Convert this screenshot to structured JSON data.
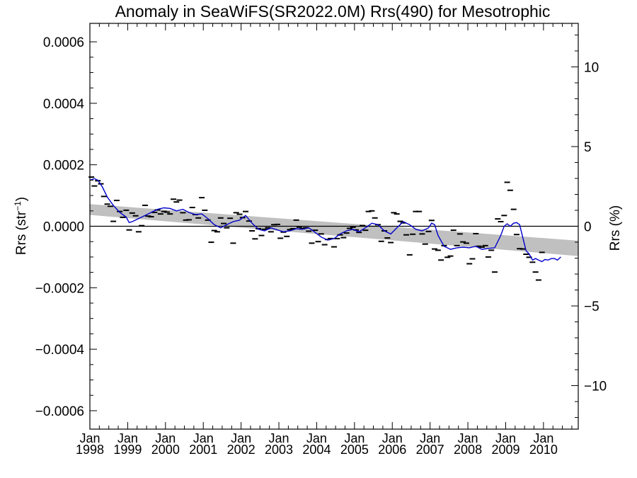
{
  "chart_data": {
    "type": "line",
    "title": "Anomaly in SeaWiFS(SR2022.0M) Rrs(490) for Mesotrophic",
    "ylabel_left": {
      "base": "Rrs (str",
      "sup": "−1",
      "tail": ")"
    },
    "ylabel_right": "Rrs (%)",
    "xlabel": "",
    "xlim": [
      1998.0,
      2010.92
    ],
    "ylim": [
      -0.00066,
      0.00066
    ],
    "ylim_right": [
      -12.73,
      12.73
    ],
    "left_ticks": [
      {
        "value": 0.0006,
        "label": "0.0006"
      },
      {
        "value": 0.0004,
        "label": "0.0004"
      },
      {
        "value": 0.0002,
        "label": "0.0002"
      },
      {
        "value": 0.0,
        "label": "0.0000"
      },
      {
        "value": -0.0002,
        "label": "−0.0002"
      },
      {
        "value": -0.0004,
        "label": "−0.0004"
      },
      {
        "value": -0.0006,
        "label": "−0.0006"
      }
    ],
    "right_ticks": [
      {
        "value": 10,
        "label": "10"
      },
      {
        "value": 5,
        "label": "5"
      },
      {
        "value": 0,
        "label": "0"
      },
      {
        "value": -5,
        "label": "−5"
      },
      {
        "value": -10,
        "label": "−10"
      }
    ],
    "x_ticks": [
      {
        "value": 1998,
        "month": "Jan",
        "year": "1998"
      },
      {
        "value": 1999,
        "month": "Jan",
        "year": "1999"
      },
      {
        "value": 2000,
        "month": "Jan",
        "year": "2000"
      },
      {
        "value": 2001,
        "month": "Jan",
        "year": "2001"
      },
      {
        "value": 2002,
        "month": "Jan",
        "year": "2002"
      },
      {
        "value": 2003,
        "month": "Jan",
        "year": "2003"
      },
      {
        "value": 2004,
        "month": "Jan",
        "year": "2004"
      },
      {
        "value": 2005,
        "month": "Jan",
        "year": "2005"
      },
      {
        "value": 2006,
        "month": "Jan",
        "year": "2006"
      },
      {
        "value": 2007,
        "month": "Jan",
        "year": "2007"
      },
      {
        "value": 2008,
        "month": "Jan",
        "year": "2008"
      },
      {
        "value": 2009,
        "month": "Jan",
        "year": "2009"
      },
      {
        "value": 2010,
        "month": "Jan",
        "year": "2010"
      }
    ],
    "zero_line": 0,
    "trend_band": {
      "x": [
        1998.0,
        2010.92
      ],
      "upper": [
        7.2e-05,
        -4.7e-05
      ],
      "lower": [
        3.7e-05,
        -9.7e-05
      ],
      "color": "#c0c0c0"
    },
    "series": [
      {
        "style": "markers-dash",
        "color": "#000000",
        "points": [
          [
            1998.04,
            0.00016
          ],
          [
            1998.12,
            0.000131
          ],
          [
            1998.21,
            0.000148
          ],
          [
            1998.29,
            0.000138
          ],
          [
            1998.37,
            9.7e-05
          ],
          [
            1998.46,
            7.2e-05
          ],
          [
            1998.54,
            6.5e-05
          ],
          [
            1998.62,
            1.6e-05
          ],
          [
            1998.71,
            8.4e-05
          ],
          [
            1998.79,
            4.8e-05
          ],
          [
            1998.87,
            2.9e-05
          ],
          [
            1998.96,
            5.2e-05
          ],
          [
            1999.04,
            -1.2e-05
          ],
          [
            1999.12,
            4.3e-05
          ],
          [
            1999.21,
            3.4e-05
          ],
          [
            1999.29,
            -1.8e-05
          ],
          [
            1999.37,
            2e-06
          ],
          [
            1999.46,
            6.8e-05
          ],
          [
            1999.54,
            3.3e-05
          ],
          [
            1999.62,
            3.1e-05
          ],
          [
            1999.71,
            4.5e-05
          ],
          [
            1999.79,
            5.3e-05
          ],
          [
            1999.87,
            4e-05
          ],
          [
            1999.96,
            4.8e-05
          ],
          [
            2000.04,
            4.6e-05
          ],
          [
            2000.12,
            4e-05
          ],
          [
            2000.21,
            8.8e-05
          ],
          [
            2000.29,
            7.9e-05
          ],
          [
            2000.37,
            8.5e-05
          ],
          [
            2000.46,
            4.4e-05
          ],
          [
            2000.54,
            2e-05
          ],
          [
            2000.62,
            2.1e-05
          ],
          [
            2000.71,
            6.1e-05
          ],
          [
            2000.79,
            3.8e-05
          ],
          [
            2000.87,
            2.7e-05
          ],
          [
            2000.96,
            9.3e-05
          ],
          [
            2001.04,
            5.2e-05
          ],
          [
            2001.12,
            2e-05
          ],
          [
            2001.21,
            -5.2e-05
          ],
          [
            2001.29,
            -1.4e-05
          ],
          [
            2001.37,
            -1.8e-05
          ],
          [
            2001.46,
            2.7e-05
          ],
          [
            2001.54,
            9e-06
          ],
          [
            2001.62,
            -5e-06
          ],
          [
            2001.71,
            2.6e-05
          ],
          [
            2001.79,
            -5.5e-05
          ],
          [
            2001.87,
            4.4e-05
          ],
          [
            2001.96,
            3.9e-05
          ],
          [
            2002.04,
            2.8e-05
          ],
          [
            2002.12,
            4.8e-05
          ],
          [
            2002.21,
            1.7e-05
          ],
          [
            2002.29,
            -1.5e-05
          ],
          [
            2002.37,
            -4.1e-05
          ],
          [
            2002.46,
            -8e-06
          ],
          [
            2002.54,
            -3e-05
          ],
          [
            2002.62,
            -1e-05
          ],
          [
            2002.71,
            -5e-06
          ],
          [
            2002.79,
            -1.8e-05
          ],
          [
            2002.87,
            5e-06
          ],
          [
            2002.96,
            6e-06
          ],
          [
            2003.04,
            -3.9e-05
          ],
          [
            2003.12,
            -1.9e-05
          ],
          [
            2003.21,
            -3.3e-05
          ],
          [
            2003.29,
            -1.1e-05
          ],
          [
            2003.37,
            -8e-06
          ],
          [
            2003.46,
            2e-05
          ],
          [
            2003.54,
            -3e-06
          ],
          [
            2003.62,
            -8e-06
          ],
          [
            2003.71,
            -5e-06
          ],
          [
            2003.79,
            -1.6e-05
          ],
          [
            2003.87,
            -5.5e-05
          ],
          [
            2003.96,
            -1.3e-05
          ],
          [
            2004.04,
            -5e-05
          ],
          [
            2004.12,
            -2.5e-05
          ],
          [
            2004.21,
            -6e-05
          ],
          [
            2004.29,
            -4.3e-05
          ],
          [
            2004.37,
            -4e-05
          ],
          [
            2004.46,
            -6.7e-05
          ],
          [
            2004.54,
            -4e-05
          ],
          [
            2004.62,
            -2.8e-05
          ],
          [
            2004.71,
            -3.7e-05
          ],
          [
            2004.79,
            -2.2e-05
          ],
          [
            2004.87,
            -7e-06
          ],
          [
            2004.96,
            -3e-06
          ],
          [
            2005.04,
            -1.2e-05
          ],
          [
            2005.12,
            -2e-05
          ],
          [
            2005.21,
            2e-06
          ],
          [
            2005.29,
            -1.3e-05
          ],
          [
            2005.37,
            4.8e-05
          ],
          [
            2005.46,
            5e-05
          ],
          [
            2005.54,
            2.7e-05
          ],
          [
            2005.62,
            5e-06
          ],
          [
            2005.71,
            -4.9e-05
          ],
          [
            2005.79,
            -1.5e-05
          ],
          [
            2005.87,
            -3.8e-05
          ],
          [
            2005.96,
            -5.3e-05
          ],
          [
            2006.04,
            4.4e-05
          ],
          [
            2006.12,
            4e-05
          ],
          [
            2006.21,
            1.6e-05
          ],
          [
            2006.29,
            1.1e-05
          ],
          [
            2006.37,
            -2.8e-05
          ],
          [
            2006.46,
            -9.3e-05
          ],
          [
            2006.54,
            -2.6e-05
          ],
          [
            2006.62,
            4.8e-05
          ],
          [
            2006.71,
            4.8e-05
          ],
          [
            2006.79,
            -2.5e-05
          ],
          [
            2006.87,
            -5.8e-05
          ],
          [
            2006.96,
            -1.7e-05
          ],
          [
            2007.04,
            1.9e-05
          ],
          [
            2007.12,
            -7.4e-05
          ],
          [
            2007.21,
            -7.8e-05
          ],
          [
            2007.29,
            -0.00011
          ],
          [
            2007.37,
            -6.3e-05
          ],
          [
            2007.46,
            -0.000101
          ],
          [
            2007.54,
            -9.7e-05
          ],
          [
            2007.62,
            -1.3e-05
          ],
          [
            2007.71,
            -6.3e-05
          ],
          [
            2007.79,
            -2.5e-05
          ],
          [
            2007.87,
            -5.1e-05
          ],
          [
            2007.96,
            -5.5e-05
          ],
          [
            2008.04,
            -0.000122
          ],
          [
            2008.12,
            -0.000106
          ],
          [
            2008.21,
            -2.4e-05
          ],
          [
            2008.29,
            -6.5e-05
          ],
          [
            2008.37,
            -6.8e-05
          ],
          [
            2008.46,
            -6.3e-05
          ],
          [
            2008.54,
            -0.0001
          ],
          [
            2008.62,
            -7.8e-05
          ],
          [
            2008.71,
            -0.000149
          ],
          [
            2008.79,
            2.4e-05
          ],
          [
            2008.87,
            1.5e-05
          ],
          [
            2008.96,
            3.5e-05
          ],
          [
            2009.04,
            0.000143
          ],
          [
            2009.12,
            0.000117
          ],
          [
            2009.21,
            5.5e-05
          ],
          [
            2009.29,
            -2.7e-05
          ],
          [
            2009.37,
            -7.3e-05
          ],
          [
            2009.46,
            -7.4e-05
          ],
          [
            2009.54,
            -9.1e-05
          ],
          [
            2009.62,
            -0.000101
          ],
          [
            2009.71,
            -0.000117
          ],
          [
            2009.79,
            -0.000149
          ],
          [
            2009.87,
            -0.000175
          ],
          [
            2009.96,
            -8.5e-05
          ]
        ]
      },
      {
        "style": "line",
        "color": "#0000cc",
        "points": [
          [
            1998.0,
            0.00015
          ],
          [
            1998.12,
            0.000155
          ],
          [
            1998.21,
            0.00015
          ],
          [
            1998.33,
            0.000128
          ],
          [
            1998.46,
            9.5e-05
          ],
          [
            1998.62,
            6.8e-05
          ],
          [
            1998.79,
            4.5e-05
          ],
          [
            1998.96,
            3e-05
          ],
          [
            1999.04,
            1.2e-05
          ],
          [
            1999.12,
            1.5e-05
          ],
          [
            1999.29,
            2.5e-05
          ],
          [
            1999.46,
            3.5e-05
          ],
          [
            1999.62,
            4.5e-05
          ],
          [
            1999.79,
            5.5e-05
          ],
          [
            1999.96,
            6e-05
          ],
          [
            2000.12,
            5.8e-05
          ],
          [
            2000.29,
            5e-05
          ],
          [
            2000.46,
            5.5e-05
          ],
          [
            2000.62,
            4.5e-05
          ],
          [
            2000.79,
            3.8e-05
          ],
          [
            2000.96,
            4e-05
          ],
          [
            2001.12,
            2.5e-05
          ],
          [
            2001.29,
            5e-06
          ],
          [
            2001.46,
            -5e-06
          ],
          [
            2001.62,
            5e-06
          ],
          [
            2001.79,
            1.5e-05
          ],
          [
            2001.96,
            2e-05
          ],
          [
            2002.12,
            3.5e-05
          ],
          [
            2002.29,
            1e-05
          ],
          [
            2002.46,
            -1e-05
          ],
          [
            2002.62,
            -1.5e-05
          ],
          [
            2002.79,
            -5e-06
          ],
          [
            2002.96,
            -1.2e-05
          ],
          [
            2003.12,
            -1.8e-05
          ],
          [
            2003.29,
            -1.5e-05
          ],
          [
            2003.46,
            -8e-06
          ],
          [
            2003.62,
            -1e-05
          ],
          [
            2003.79,
            -5e-06
          ],
          [
            2003.96,
            -2e-05
          ],
          [
            2004.12,
            -3.5e-05
          ],
          [
            2004.29,
            -4.5e-05
          ],
          [
            2004.46,
            -4e-05
          ],
          [
            2004.62,
            -2.5e-05
          ],
          [
            2004.79,
            -1.5e-05
          ],
          [
            2004.96,
            -1e-05
          ],
          [
            2005.12,
            -1.8e-05
          ],
          [
            2005.29,
            -5e-06
          ],
          [
            2005.46,
            1e-05
          ],
          [
            2005.62,
            5e-06
          ],
          [
            2005.79,
            -1.5e-05
          ],
          [
            2005.96,
            -2.5e-05
          ],
          [
            2006.12,
            -5e-06
          ],
          [
            2006.29,
            1.5e-05
          ],
          [
            2006.46,
            5e-06
          ],
          [
            2006.62,
            -1e-05
          ],
          [
            2006.79,
            -1.5e-05
          ],
          [
            2006.96,
            -5e-06
          ],
          [
            2007.04,
            1e-05
          ],
          [
            2007.12,
            5e-06
          ],
          [
            2007.21,
            -3e-05
          ],
          [
            2007.37,
            -6.5e-05
          ],
          [
            2007.54,
            -7.5e-05
          ],
          [
            2007.71,
            -7e-05
          ],
          [
            2007.87,
            -6.8e-05
          ],
          [
            2008.04,
            -7e-05
          ],
          [
            2008.21,
            -6.5e-05
          ],
          [
            2008.37,
            -7.5e-05
          ],
          [
            2008.54,
            -7.2e-05
          ],
          [
            2008.71,
            -7e-05
          ],
          [
            2008.87,
            -3e-05
          ],
          [
            2008.96,
            0.0
          ],
          [
            2009.04,
            8e-06
          ],
          [
            2009.12,
            0.0
          ],
          [
            2009.21,
            1e-05
          ],
          [
            2009.29,
            1.2e-05
          ],
          [
            2009.37,
            5e-06
          ],
          [
            2009.46,
            -4e-05
          ],
          [
            2009.54,
            -8e-05
          ],
          [
            2009.62,
            -9e-05
          ],
          [
            2009.71,
            -0.00011
          ],
          [
            2009.79,
            -0.000105
          ],
          [
            2009.87,
            -0.00011
          ],
          [
            2009.96,
            -0.000115
          ],
          [
            2010.04,
            -0.000108
          ],
          [
            2010.12,
            -0.00011
          ],
          [
            2010.21,
            -0.000105
          ],
          [
            2010.29,
            -0.000105
          ],
          [
            2010.37,
            -0.00011
          ],
          [
            2010.46,
            -0.0001
          ]
        ]
      }
    ]
  }
}
